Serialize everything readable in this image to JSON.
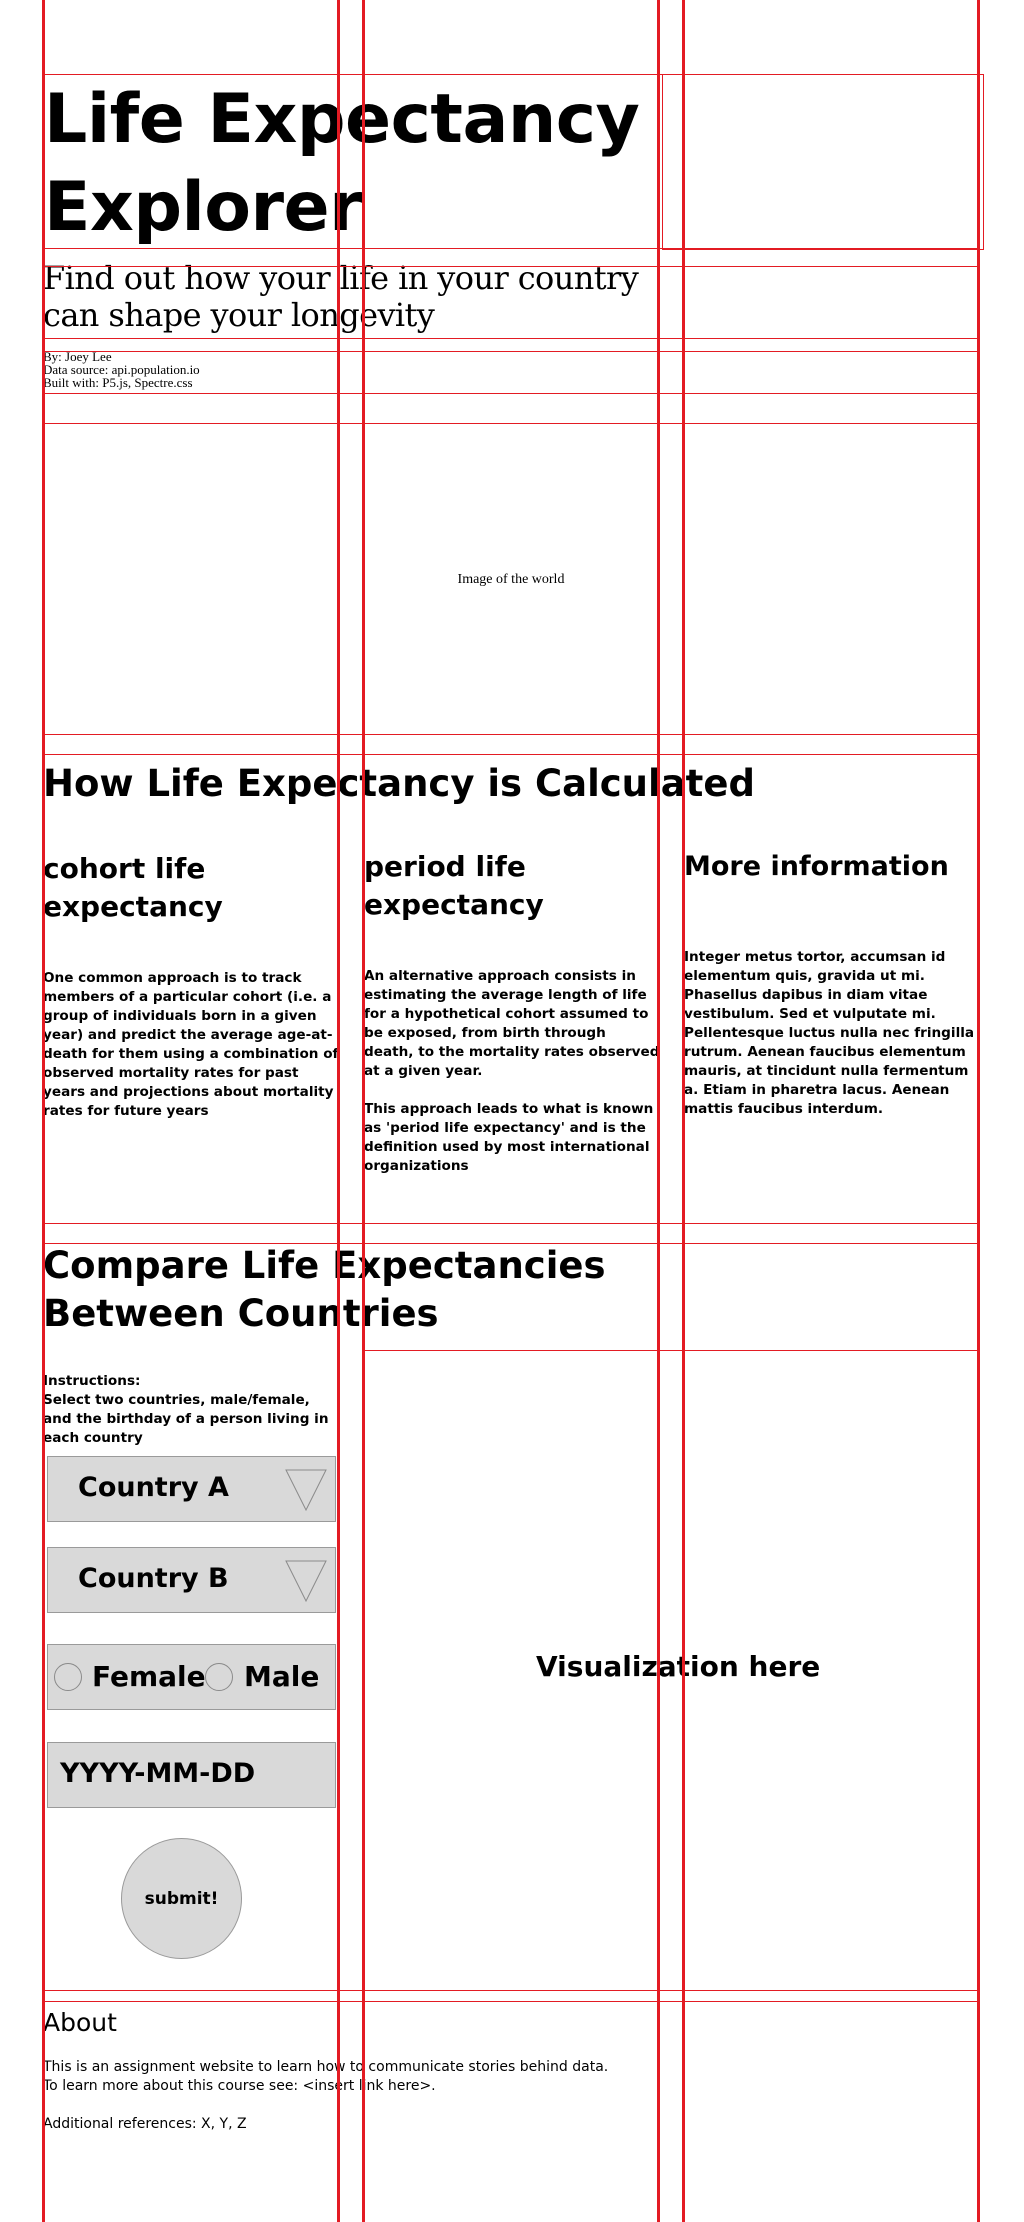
{
  "header": {
    "title_line1": "Life Expectancy",
    "title_line2": "Explorer",
    "subtitle": "Find out how your life in your country can shape your longevity",
    "credits": [
      "By: Joey Lee",
      "Data source: api.population.io",
      "Built with: P5.js, Spectre.css"
    ]
  },
  "hero": {
    "image_placeholder": "Image of the world"
  },
  "calculation": {
    "heading": "How Life Expectancy is Calculated",
    "columns": [
      {
        "heading": "cohort life expectancy",
        "paragraphs": [
          "One common approach is to track members of a particular cohort (i.e. a group of individuals born in a given year) and predict the average age-at-death for them using a combination of observed mortality rates for past years and projections about mortality rates for future years"
        ]
      },
      {
        "heading": "period life expectancy",
        "paragraphs": [
          "An alternative approach consists in estimating the average length of life for a hypothetical cohort assumed to be exposed, from birth through death, to the mortality rates observed at a given year.",
          "This approach leads to what is known as 'period life expectancy' and is the definition used by most international organizations"
        ]
      },
      {
        "heading": "More information",
        "paragraphs": [
          "Integer metus tortor, accumsan id elementum quis, gravida ut mi. Phasellus dapibus in diam vitae vestibulum. Sed et vulputate mi. Pellentesque luctus nulla nec fringilla rutrum. Aenean faucibus elementum mauris, at tincidunt nulla fermentum a. Etiam in pharetra lacus. Aenean mattis faucibus interdum."
        ]
      }
    ]
  },
  "compare": {
    "heading_line1": "Compare Life Expectancies",
    "heading_line2": "Between Countries",
    "instructions_label": "Instructions:",
    "instructions_text": "Select two countries, male/female, and the birthday of a person living in each country",
    "country_a": "Country A",
    "country_b": "Country B",
    "gender_options": [
      "Female",
      "Male"
    ],
    "date_placeholder": "YYYY-MM-DD",
    "submit_label": "submit!",
    "visualization_placeholder": "Visualization here"
  },
  "about": {
    "heading": "About",
    "line1": "This is an assignment website to learn how to communicate stories behind data.",
    "line2": "To learn more about this course see: <insert link here>.",
    "line3": "Additional references: X, Y, Z"
  },
  "colors": {
    "grid_red": "#e31b23",
    "input_gray": "#d9d9d9"
  }
}
